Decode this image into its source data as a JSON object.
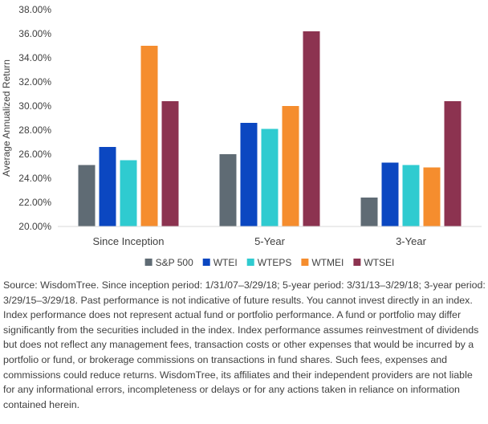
{
  "chart_data": {
    "type": "bar",
    "title": "",
    "xlabel": "",
    "ylabel": "Average Annualized Return",
    "categories": [
      "Since Inception",
      "5-Year",
      "3-Year"
    ],
    "series": [
      {
        "name": "S&P 500",
        "color": "#5f6b74",
        "values": [
          25.1,
          26.0,
          22.4
        ]
      },
      {
        "name": "WTEI",
        "color": "#0b47c1",
        "values": [
          26.6,
          28.6,
          25.3
        ]
      },
      {
        "name": "WTEPS",
        "color": "#2fcbd0",
        "values": [
          25.5,
          28.1,
          25.1
        ]
      },
      {
        "name": "WTMEI",
        "color": "#f58d2e",
        "values": [
          35.0,
          30.0,
          24.9
        ]
      },
      {
        "name": "WTSEI",
        "color": "#8c3350",
        "values": [
          30.4,
          36.2,
          30.4
        ]
      }
    ],
    "ylim": [
      20,
      38
    ],
    "yticks": [
      "20.00%",
      "22.00%",
      "24.00%",
      "26.00%",
      "28.00%",
      "30.00%",
      "32.00%",
      "34.00%",
      "36.00%",
      "38.00%"
    ],
    "grid": false,
    "legend": "bottom"
  },
  "footnote": "Source: WisdomTree. Since inception period: 1/31/07–3/29/18; 5-year period: 3/31/13–3/29/18; 3-year period: 3/29/15–3/29/18. Past performance is not indicative of future results. You cannot invest directly in an index. Index performance does not represent actual fund or portfolio performance. A fund or portfolio may differ significantly from the securities included in the index. Index performance assumes reinvestment of dividends but does not reflect any management fees, transaction costs or other expenses that would be incurred by a portfolio or fund, or brokerage commissions on transactions in fund shares. Such fees, expenses and commissions could reduce returns. WisdomTree, its affiliates and their independent providers are not liable for any informational errors, incompleteness or delays or for any actions taken in reliance on information contained herein."
}
